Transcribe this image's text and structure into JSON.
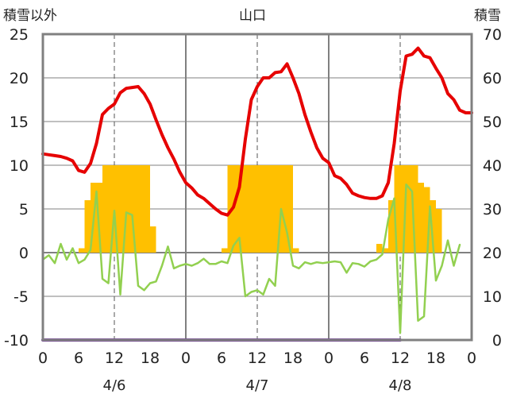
{
  "chart_data": {
    "type": "line+bar",
    "title": "山口",
    "y_left_label": "積雪以外",
    "y_right_label": "積雪",
    "y_left_ticks": [
      "25",
      "20",
      "15",
      "10",
      "5",
      "0",
      "-5",
      "-10"
    ],
    "y_right_ticks": [
      "70",
      "60",
      "50",
      "40",
      "30",
      "20",
      "10",
      "0"
    ],
    "x_ticks": [
      "0",
      "6",
      "12",
      "18",
      "0",
      "6",
      "12",
      "18",
      "0",
      "6",
      "12",
      "18",
      "0"
    ],
    "dates": [
      "4/6",
      "4/7",
      "4/8"
    ],
    "ylim_left": [
      -10,
      25
    ],
    "ylim_right": [
      0,
      70
    ],
    "xlim": [
      0,
      72
    ],
    "grid": true,
    "colors": {
      "temperature": "#e60000",
      "snow_bars": "#ffc000",
      "secondary": "#92d050",
      "baseline": "#7030a0",
      "frame": "#808080",
      "grid": "#808080"
    },
    "series": [
      {
        "key": "red_line",
        "values": [
          [
            0,
            11.3
          ],
          [
            1,
            11.2
          ],
          [
            2,
            11.1
          ],
          [
            3,
            11.0
          ],
          [
            4,
            10.8
          ],
          [
            5,
            10.5
          ],
          [
            6,
            9.4
          ],
          [
            7,
            9.2
          ],
          [
            8,
            10.2
          ],
          [
            9,
            12.5
          ],
          [
            10,
            15.8
          ],
          [
            11,
            16.5
          ],
          [
            12,
            17.0
          ],
          [
            13,
            18.3
          ],
          [
            14,
            18.8
          ],
          [
            15,
            18.9
          ],
          [
            16,
            19.0
          ],
          [
            17,
            18.2
          ],
          [
            18,
            17.0
          ],
          [
            19,
            15.2
          ],
          [
            20,
            13.5
          ],
          [
            21,
            12.0
          ],
          [
            22,
            10.7
          ],
          [
            23,
            9.2
          ],
          [
            24,
            8.0
          ],
          [
            25,
            7.4
          ],
          [
            26,
            6.6
          ],
          [
            27,
            6.2
          ],
          [
            28,
            5.6
          ],
          [
            29,
            5.0
          ],
          [
            30,
            4.5
          ],
          [
            31,
            4.3
          ],
          [
            32,
            5.2
          ],
          [
            33,
            7.5
          ],
          [
            34,
            13.0
          ],
          [
            35,
            17.5
          ],
          [
            36,
            19.0
          ],
          [
            37,
            20.0
          ],
          [
            38,
            20.0
          ],
          [
            39,
            20.6
          ],
          [
            40,
            20.7
          ],
          [
            41,
            21.6
          ],
          [
            42,
            20.0
          ],
          [
            43,
            18.2
          ],
          [
            44,
            15.8
          ],
          [
            45,
            13.8
          ],
          [
            46,
            12.0
          ],
          [
            47,
            10.8
          ],
          [
            48,
            10.3
          ],
          [
            49,
            8.8
          ],
          [
            50,
            8.5
          ],
          [
            51,
            7.8
          ],
          [
            52,
            6.8
          ],
          [
            53,
            6.5
          ],
          [
            54,
            6.3
          ],
          [
            55,
            6.2
          ],
          [
            56,
            6.2
          ],
          [
            57,
            6.5
          ],
          [
            58,
            8.0
          ],
          [
            59,
            12.5
          ],
          [
            60,
            18.5
          ],
          [
            61,
            22.5
          ],
          [
            62,
            22.7
          ],
          [
            63,
            23.4
          ],
          [
            64,
            22.5
          ],
          [
            65,
            22.3
          ],
          [
            66,
            21.1
          ],
          [
            67,
            20.0
          ],
          [
            68,
            18.2
          ],
          [
            69,
            17.5
          ],
          [
            70,
            16.3
          ],
          [
            71,
            16.0
          ],
          [
            72,
            16.0
          ]
        ]
      },
      {
        "key": "green_line",
        "values": [
          [
            0,
            -0.8
          ],
          [
            1,
            -0.3
          ],
          [
            2,
            -1.2
          ],
          [
            3,
            1.0
          ],
          [
            4,
            -0.8
          ],
          [
            5,
            0.5
          ],
          [
            6,
            -1.2
          ],
          [
            7,
            -0.8
          ],
          [
            8,
            0.3
          ],
          [
            9,
            7.0
          ],
          [
            10,
            -3.0
          ],
          [
            11,
            -3.5
          ],
          [
            12,
            4.8
          ],
          [
            13,
            -4.8
          ],
          [
            14,
            4.6
          ],
          [
            15,
            4.3
          ],
          [
            16,
            -3.8
          ],
          [
            17,
            -4.3
          ],
          [
            18,
            -3.5
          ],
          [
            19,
            -3.3
          ],
          [
            20,
            -1.5
          ],
          [
            21,
            0.7
          ],
          [
            22,
            -1.8
          ],
          [
            23,
            -1.5
          ],
          [
            24,
            -1.3
          ],
          [
            25,
            -1.5
          ],
          [
            26,
            -1.2
          ],
          [
            27,
            -0.7
          ],
          [
            28,
            -1.3
          ],
          [
            29,
            -1.3
          ],
          [
            30,
            -1.0
          ],
          [
            31,
            -1.2
          ],
          [
            32,
            0.8
          ],
          [
            33,
            1.7
          ],
          [
            34,
            -5.0
          ],
          [
            35,
            -4.5
          ],
          [
            36,
            -4.3
          ],
          [
            37,
            -4.8
          ],
          [
            38,
            -3.0
          ],
          [
            39,
            -3.8
          ],
          [
            40,
            5.0
          ],
          [
            41,
            2.3
          ],
          [
            42,
            -1.5
          ],
          [
            43,
            -1.8
          ],
          [
            44,
            -1.1
          ],
          [
            45,
            -1.3
          ],
          [
            46,
            -1.1
          ],
          [
            47,
            -1.2
          ],
          [
            48,
            -1.1
          ],
          [
            49,
            -1.0
          ],
          [
            50,
            -1.1
          ],
          [
            51,
            -2.3
          ],
          [
            52,
            -1.2
          ],
          [
            53,
            -1.3
          ],
          [
            54,
            -1.6
          ],
          [
            55,
            -1.0
          ],
          [
            56,
            -0.8
          ],
          [
            57,
            -0.2
          ],
          [
            58,
            3.8
          ],
          [
            59,
            6.2
          ],
          [
            60,
            -9.2
          ],
          [
            61,
            7.8
          ],
          [
            62,
            7.0
          ],
          [
            63,
            -7.8
          ],
          [
            64,
            -7.3
          ],
          [
            65,
            5.3
          ],
          [
            66,
            -3.2
          ],
          [
            67,
            -1.5
          ],
          [
            68,
            1.4
          ],
          [
            69,
            -1.5
          ],
          [
            70,
            0.9
          ]
        ]
      },
      {
        "key": "purple_line",
        "values": [
          [
            0,
            -10
          ],
          [
            60,
            -10
          ]
        ]
      }
    ],
    "snow_bars": [
      {
        "x": 6,
        "w": 1,
        "v": 21
      },
      {
        "x": 7,
        "w": 1,
        "v": 32
      },
      {
        "x": 8,
        "w": 2,
        "v": 36
      },
      {
        "x": 10,
        "w": 8,
        "v": 40
      },
      {
        "x": 18,
        "w": 1,
        "v": 26
      },
      {
        "x": 30,
        "w": 1,
        "v": 21
      },
      {
        "x": 31,
        "w": 11,
        "v": 40
      },
      {
        "x": 42,
        "w": 1,
        "v": 21
      },
      {
        "x": 56,
        "w": 1,
        "v": 22
      },
      {
        "x": 57,
        "w": 1,
        "v": 21
      },
      {
        "x": 58,
        "w": 1,
        "v": 32
      },
      {
        "x": 59,
        "w": 4,
        "v": 40
      },
      {
        "x": 63,
        "w": 1,
        "v": 36
      },
      {
        "x": 64,
        "w": 1,
        "v": 35
      },
      {
        "x": 65,
        "w": 1,
        "v": 32
      },
      {
        "x": 66,
        "w": 1,
        "v": 30
      }
    ]
  }
}
